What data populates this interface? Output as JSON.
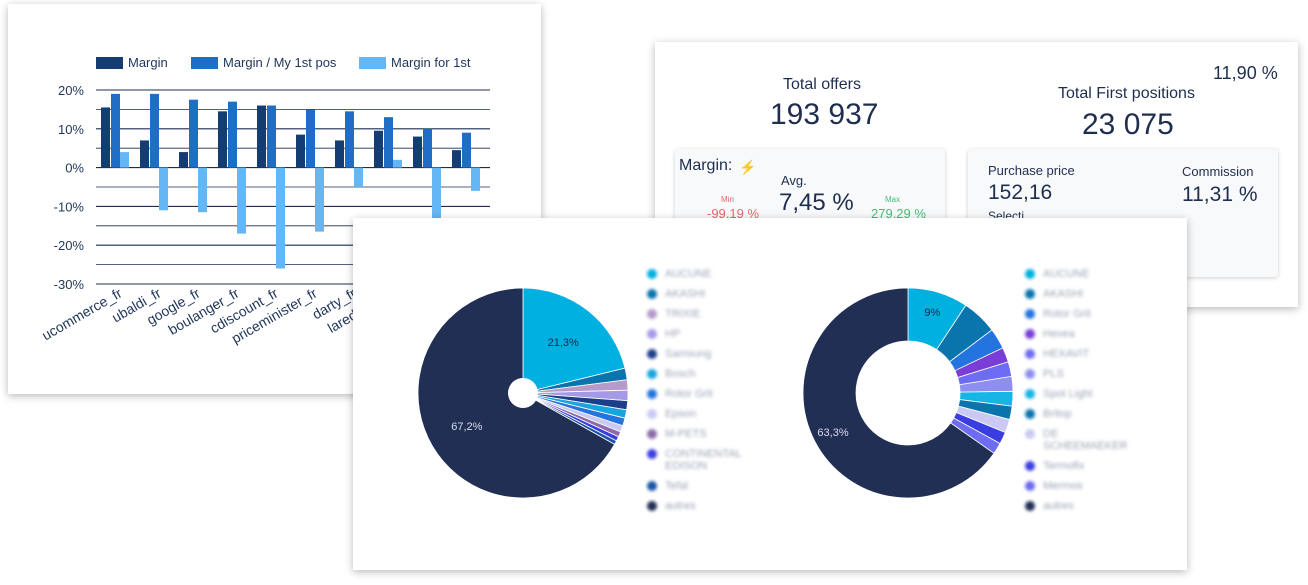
{
  "chart_data": [
    {
      "type": "bar",
      "categories": [
        "ucommerce_fr",
        "ubaldi_fr",
        "google_fr",
        "boulanger_fr",
        "cdiscount_fr",
        "priceminister_fr",
        "darty_fr",
        "laredoute_fr",
        "",
        "",
        ""
      ],
      "series": [
        {
          "name": "Margin",
          "color": "#133d73",
          "values": [
            15.5,
            7,
            4,
            14.5,
            16,
            8.5,
            7,
            9.5,
            8,
            4.5,
            null
          ]
        },
        {
          "name": "Margin / My 1st pos",
          "color": "#1f6dc4",
          "values": [
            19,
            19,
            17.5,
            17,
            16,
            15,
            14.5,
            13,
            10,
            9,
            null
          ]
        },
        {
          "name": "Margin for 1st",
          "color": "#65b6f4",
          "values": [
            4,
            -11,
            -11.5,
            -17,
            -26,
            -16.5,
            -5,
            2,
            -13,
            -6,
            null
          ]
        }
      ],
      "yticks": [
        "20%",
        "10%",
        "0%",
        "-10%",
        "-20%",
        "-30%"
      ],
      "ylim": [
        -30,
        20
      ]
    },
    {
      "type": "pie",
      "slices": [
        {
          "value": 21.3,
          "label": "21,3%",
          "color": "#00b0e1"
        },
        {
          "value": 1.8,
          "color": "#0a74ad"
        },
        {
          "value": 1.6,
          "color": "#b69ac9"
        },
        {
          "value": 1.6,
          "color": "#a49ae8"
        },
        {
          "value": 1.4,
          "color": "#1d3e8a"
        },
        {
          "value": 1.3,
          "color": "#17a5dc"
        },
        {
          "value": 1.2,
          "color": "#2474e0"
        },
        {
          "value": 1.0,
          "color": "#c9c9f3"
        },
        {
          "value": 0.8,
          "color": "#8e6aa8"
        },
        {
          "value": 0.7,
          "color": "#3a3ee0"
        },
        {
          "value": 0.6,
          "color": "#1b55a8"
        },
        {
          "value": 67.2,
          "label": "67,2%",
          "color": "#222f55"
        }
      ]
    },
    {
      "type": "pie",
      "slices": [
        {
          "value": 9,
          "label": "9%",
          "color": "#00b0e1"
        },
        {
          "value": 5.3,
          "color": "#0a74ad"
        },
        {
          "value": 3.1,
          "color": "#2474e0"
        },
        {
          "value": 2.2,
          "color": "#7a3ed6"
        },
        {
          "value": 2.2,
          "color": "#6d6cf2"
        },
        {
          "value": 2.2,
          "color": "#8e8ef0"
        },
        {
          "value": 2.2,
          "color": "#17b5e6"
        },
        {
          "value": 2.0,
          "color": "#0a74ad"
        },
        {
          "value": 2.0,
          "color": "#c9c9f3"
        },
        {
          "value": 1.8,
          "color": "#3a3ee0"
        },
        {
          "value": 1.7,
          "color": "#6d6cf2"
        },
        {
          "value": 63.3,
          "label": "63,3%",
          "color": "#222f55"
        }
      ]
    }
  ],
  "pie1_legend": [
    {
      "label": "AUCUNE",
      "color": "#00b0e1"
    },
    {
      "label": "AKASHI",
      "color": "#0a74ad"
    },
    {
      "label": "TRIXIE",
      "color": "#b69ac9"
    },
    {
      "label": "HP",
      "color": "#a49ae8"
    },
    {
      "label": "Samsung",
      "color": "#1d3e8a"
    },
    {
      "label": "Bosch",
      "color": "#17a5dc"
    },
    {
      "label": "Rotor Grit",
      "color": "#2474e0"
    },
    {
      "label": "Epson",
      "color": "#c9c9f3"
    },
    {
      "label": "M-PETS",
      "color": "#8e6aa8"
    },
    {
      "label": "CONTINENTAL EDISON",
      "color": "#3a3ee0"
    },
    {
      "label": "Tefal",
      "color": "#1b55a8"
    },
    {
      "label": "autres",
      "color": "#222f55"
    }
  ],
  "pie2_legend": [
    {
      "label": "AUCUNE",
      "color": "#00b0e1"
    },
    {
      "label": "AKASHI",
      "color": "#0a74ad"
    },
    {
      "label": "Rotor Grit",
      "color": "#2474e0"
    },
    {
      "label": "Hevea",
      "color": "#7a3ed6"
    },
    {
      "label": "HEXAVIT",
      "color": "#6d6cf2"
    },
    {
      "label": "PLS",
      "color": "#8e8ef0"
    },
    {
      "label": "Spot Light",
      "color": "#17b5e6"
    },
    {
      "label": "Britop",
      "color": "#0a74ad"
    },
    {
      "label": "DE SCHEEMAEKER",
      "color": "#c9c9f3"
    },
    {
      "label": "Termofix",
      "color": "#3a3ee0"
    },
    {
      "label": "Mermos",
      "color": "#6d6cf2"
    },
    {
      "label": "autres",
      "color": "#222f55"
    }
  ],
  "kpi": {
    "total_offers_label": "Total offers",
    "total_offers_value": "193 937",
    "first_positions_label": "Total First positions",
    "first_positions_value": "23 075",
    "first_positions_pct": "11,90 %",
    "margin_label": "Margin:",
    "avg_label": "Avg.",
    "avg_value": "7,45 %",
    "min_label": "Min",
    "min_value": "-99,19 %",
    "max_label": "Max",
    "max_value": "279,29 %",
    "purchase_label": "Purchase price",
    "purchase_value": "152,16",
    "commission_label": "Commission",
    "commission_value": "11,31 %",
    "extra_label": "Selecti"
  }
}
